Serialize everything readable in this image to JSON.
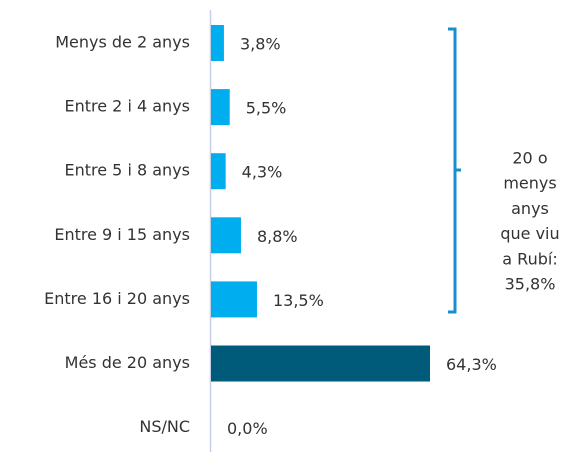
{
  "chart_data": {
    "type": "barh",
    "categories": [
      "Menys de 2 anys",
      "Entre 2 i 4 anys",
      "Entre 5 i 8 anys",
      "Entre 9 i 15 anys",
      "Entre 16 i 20 anys",
      "Més de 20 anys",
      "NS/NC"
    ],
    "values": [
      3.8,
      5.5,
      4.3,
      8.8,
      13.5,
      64.3,
      0.0
    ],
    "value_labels": [
      "3,8%",
      "5,5%",
      "4,3%",
      "8,8%",
      "13,5%",
      "64,3%",
      "0,0%"
    ],
    "colors": [
      "#00aeef",
      "#00aeef",
      "#00aeef",
      "#00aeef",
      "#00aeef",
      "#005a7a",
      "#00aeef"
    ],
    "annotation": [
      "20 o",
      "menys",
      "anys",
      "que viu",
      "a Rubí:",
      "35,8%"
    ]
  }
}
